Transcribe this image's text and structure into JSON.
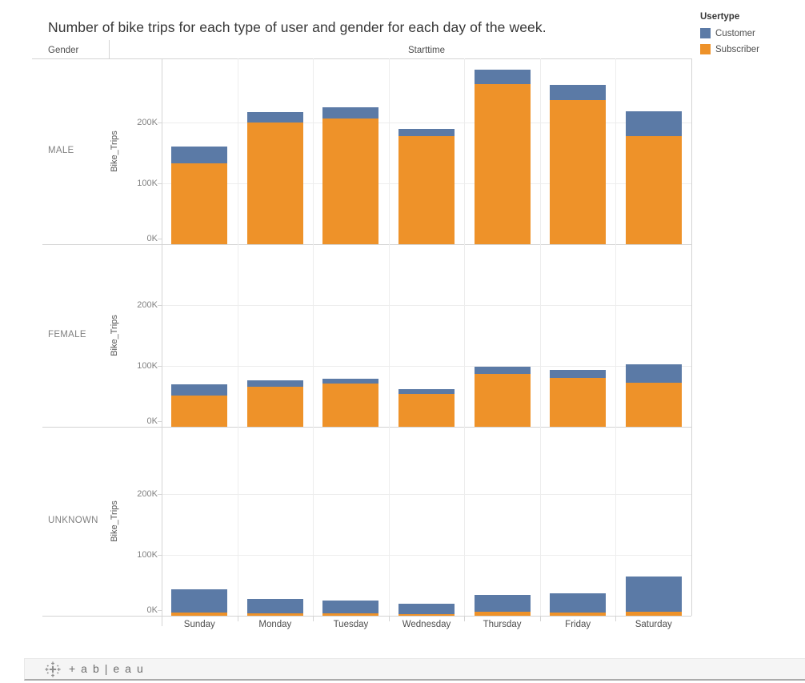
{
  "title": "Number of bike trips for each type of user and gender for each day of the week.",
  "header": {
    "gender": "Gender",
    "starttime": "Starttime"
  },
  "legend": {
    "title": "Usertype",
    "items": [
      {
        "label": "Customer",
        "color": "#5B7AA6"
      },
      {
        "label": "Subscriber",
        "color": "#EE9229"
      }
    ]
  },
  "footer": {
    "wordmark": "+ab|eau"
  },
  "colors": {
    "customer": "#5B7AA6",
    "subscriber": "#EE9229",
    "grid": "#ededed",
    "border": "#d4d4d4",
    "tick_text": "#818181",
    "label_text": "#4e4e4e",
    "title_text": "#373737"
  },
  "chart_data": {
    "type": "bar",
    "stacked": true,
    "title": "Number of bike trips for each type of user and gender for each day of the week.",
    "x_field": "Starttime",
    "facet_field": "Gender",
    "ylabel": "Bike_Trips",
    "categories": [
      "Sunday",
      "Monday",
      "Tuesday",
      "Wednesday",
      "Thursday",
      "Friday",
      "Saturday"
    ],
    "yticks_k": [
      0,
      100,
      200
    ],
    "ytick_labels": [
      "0K",
      "100K",
      "200K"
    ],
    "ylim_k": [
      0,
      300
    ],
    "grid": true,
    "legend_position": "top-right",
    "series_order_bottom_to_top": [
      "Subscriber",
      "Customer"
    ],
    "units": "thousands of trips",
    "facets": [
      {
        "label": "MALE",
        "subscriber_k": [
          133,
          200,
          207,
          177,
          263,
          237,
          178
        ],
        "customer_k": [
          28,
          17,
          18,
          13,
          24,
          25,
          40
        ]
      },
      {
        "label": "FEMALE",
        "subscriber_k": [
          51,
          66,
          71,
          54,
          87,
          80,
          72
        ],
        "customer_k": [
          19,
          10,
          8,
          8,
          12,
          13,
          31
        ]
      },
      {
        "label": "UNKNOWN",
        "subscriber_k": [
          5,
          4,
          4,
          3,
          7,
          5,
          6
        ],
        "customer_k": [
          38,
          24,
          21,
          17,
          27,
          32,
          58
        ]
      }
    ]
  }
}
